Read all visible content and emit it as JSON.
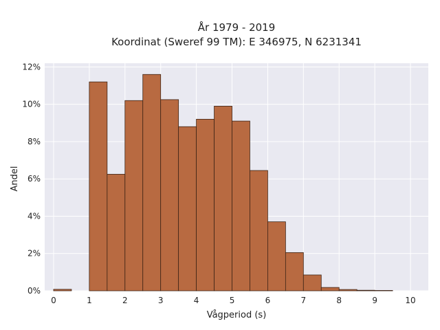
{
  "chart_data": {
    "type": "bar",
    "title_lines": [
      "År 1979 - 2019",
      "Koordinat (Sweref 99 TM): E 346975, N 6231341"
    ],
    "xlabel": "Vågperiod (s)",
    "ylabel": "Andel",
    "xlim": [
      -0.25,
      10.5
    ],
    "ylim": [
      0,
      12.2
    ],
    "x_ticks": [
      0,
      1,
      2,
      3,
      4,
      5,
      6,
      7,
      8,
      9,
      10
    ],
    "y_ticks": [
      0,
      2,
      4,
      6,
      8,
      10,
      12
    ],
    "y_tick_suffix": "%",
    "bin_width": 0.5,
    "bins": [
      {
        "start": 0.0,
        "value": 0.08
      },
      {
        "start": 0.5,
        "value": 0.0
      },
      {
        "start": 1.0,
        "value": 11.2
      },
      {
        "start": 1.5,
        "value": 6.25
      },
      {
        "start": 2.0,
        "value": 10.2
      },
      {
        "start": 2.5,
        "value": 11.6
      },
      {
        "start": 3.0,
        "value": 10.25
      },
      {
        "start": 3.5,
        "value": 8.8
      },
      {
        "start": 4.0,
        "value": 9.2
      },
      {
        "start": 4.5,
        "value": 9.9
      },
      {
        "start": 5.0,
        "value": 9.1
      },
      {
        "start": 5.5,
        "value": 6.45
      },
      {
        "start": 6.0,
        "value": 3.7
      },
      {
        "start": 6.5,
        "value": 2.05
      },
      {
        "start": 7.0,
        "value": 0.85
      },
      {
        "start": 7.5,
        "value": 0.18
      },
      {
        "start": 8.0,
        "value": 0.07
      },
      {
        "start": 8.5,
        "value": 0.03
      },
      {
        "start": 9.0,
        "value": 0.02
      },
      {
        "start": 9.5,
        "value": 0.0
      }
    ],
    "grid": true,
    "colors": {
      "bar_fill": "#b86a41",
      "bar_stroke": "#3d2416",
      "plot_background": "#e9e9f1",
      "grid": "#ffffff"
    }
  }
}
